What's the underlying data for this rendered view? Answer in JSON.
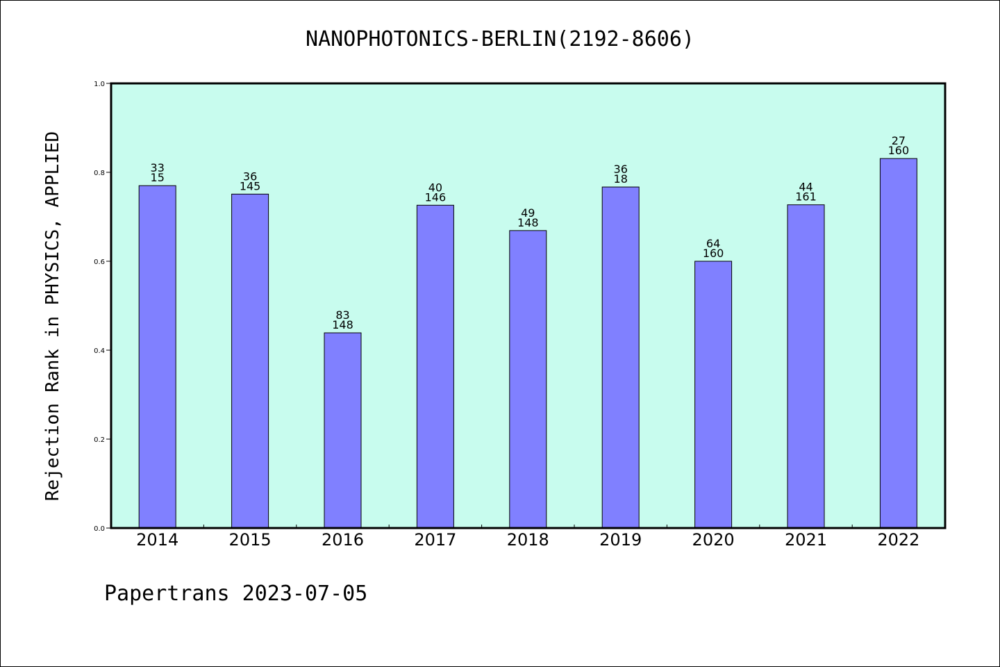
{
  "chart_data": {
    "type": "bar",
    "title": "NANOPHOTONICS-BERLIN(2192-8606)",
    "ylabel": "Rejection Rank in PHYSICS, APPLIED",
    "xlabel": "",
    "ylim": [
      0.0,
      1.0
    ],
    "yticks": [
      "0.0",
      "0.2",
      "0.4",
      "0.6",
      "0.8",
      "1.0"
    ],
    "categories": [
      "2014",
      "2015",
      "2016",
      "2017",
      "2018",
      "2019",
      "2020",
      "2021",
      "2022"
    ],
    "values": [
      0.77,
      0.751,
      0.439,
      0.726,
      0.669,
      0.767,
      0.6,
      0.727,
      0.831
    ],
    "labels_top": [
      "33",
      "36",
      "83",
      "40",
      "49",
      "36",
      "64",
      "44",
      "27"
    ],
    "labels_bottom": [
      "15",
      "145",
      "148",
      "146",
      "148",
      "18",
      "160",
      "161",
      "160"
    ],
    "colors": {
      "plot_bg": "#c8fcee",
      "bar_fill": "#8080ff",
      "bar_stroke": "#000000"
    },
    "grid": false
  },
  "footer": {
    "text": "Papertrans 2023-07-05"
  }
}
